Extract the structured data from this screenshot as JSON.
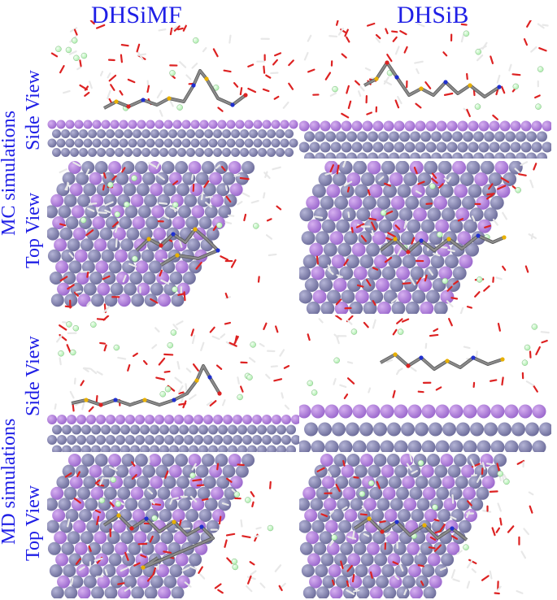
{
  "columns": {
    "left": "DHSiMF",
    "right": "DHSiB"
  },
  "rows": {
    "mc": "MC simulations",
    "md": "MD simulations"
  },
  "views": {
    "side": "Side View",
    "top": "Top View"
  },
  "colors": {
    "label": "#1f1fe6",
    "atom_purple": "#9966cc",
    "atom_slate": "#6b6b99",
    "water_red": "#dd2222",
    "chloride_green": "#aaeeaa",
    "carbon_gray": "#8a8a8a",
    "sulfur_yellow": "#e8b000",
    "nitrogen_blue": "#2030d0"
  }
}
